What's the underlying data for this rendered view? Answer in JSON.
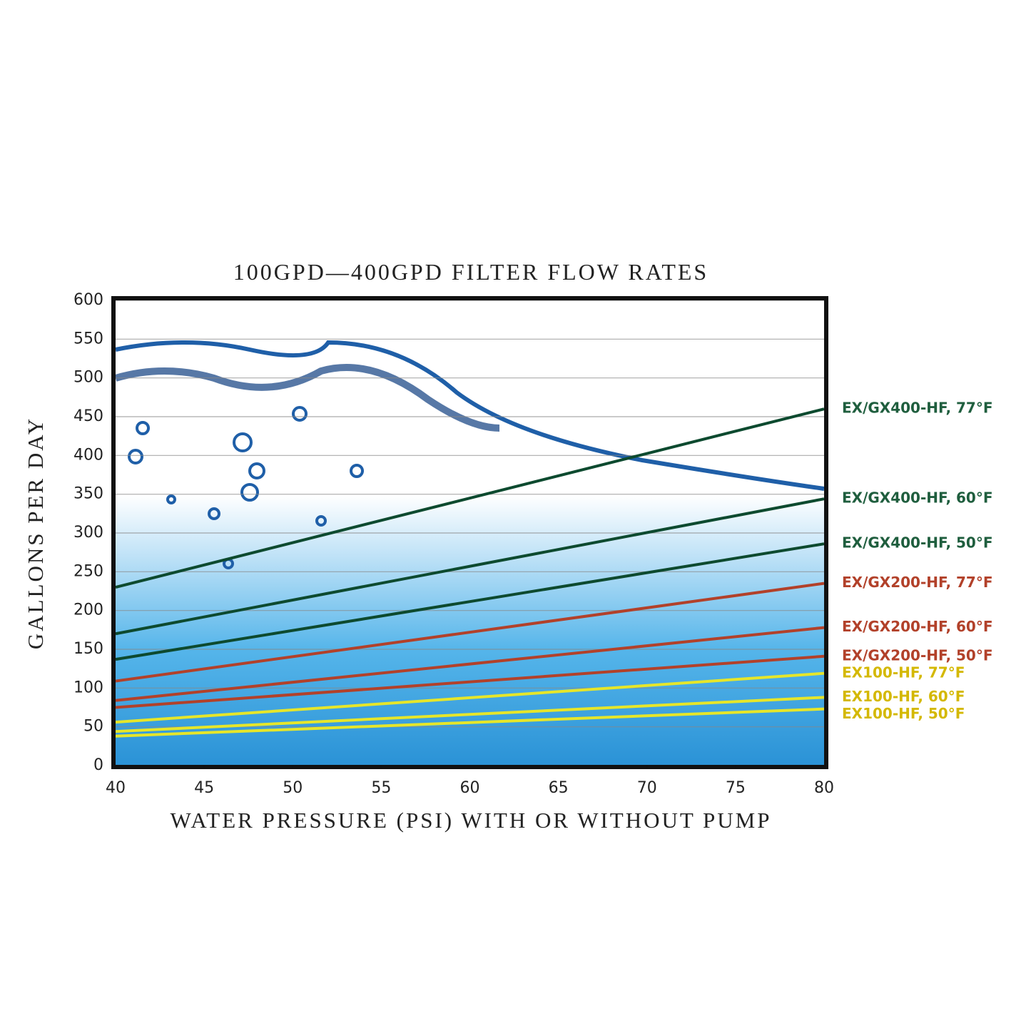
{
  "chart_data": {
    "type": "line",
    "title": "100GPD—400GPD FILTER FLOW RATES",
    "x_label": "WATER PRESSURE (PSI) WITH OR WITHOUT PUMP",
    "y_label": "GALLONS PER DAY",
    "x": [
      40,
      80
    ],
    "xlim": [
      40,
      80
    ],
    "xticks": [
      40,
      45,
      50,
      55,
      60,
      65,
      70,
      75,
      80
    ],
    "ylim": [
      0,
      600
    ],
    "yticks": [
      0,
      50,
      100,
      150,
      200,
      250,
      300,
      350,
      400,
      450,
      500,
      550,
      600
    ],
    "grid": true,
    "series": [
      {
        "name": "EX/GX400-HF, 77°F",
        "color": "#0d4a2f",
        "values": [
          230,
          460
        ]
      },
      {
        "name": "EX/GX400-HF, 60°F",
        "color": "#0d4a2f",
        "values": [
          170,
          344
        ]
      },
      {
        "name": "EX/GX400-HF, 50°F",
        "color": "#0d4a2f",
        "values": [
          137,
          286
        ]
      },
      {
        "name": "EX/GX200-HF, 77°F",
        "color": "#b2412a",
        "values": [
          109,
          235
        ]
      },
      {
        "name": "EX/GX200-HF, 60°F",
        "color": "#b2412a",
        "values": [
          84,
          178
        ]
      },
      {
        "name": "EX/GX200-HF, 50°F",
        "color": "#b2412a",
        "values": [
          75,
          141
        ]
      },
      {
        "name": "EX100-HF, 77°F",
        "color": "#e6e62a",
        "values": [
          56,
          119
        ]
      },
      {
        "name": "EX100-HF, 60°F",
        "color": "#e6e62a",
        "values": [
          44,
          88
        ]
      },
      {
        "name": "EX100-HF, 50°F",
        "color": "#e6e62a",
        "values": [
          38,
          73
        ]
      }
    ]
  }
}
